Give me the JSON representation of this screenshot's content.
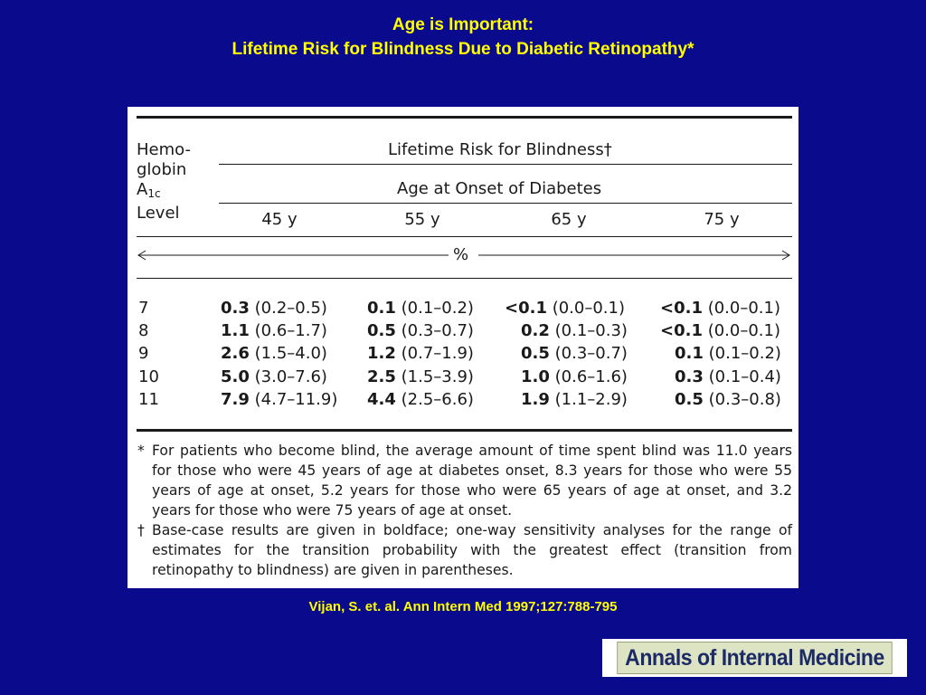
{
  "slide": {
    "title_line1": "Age is Important:",
    "title_line2": "Lifetime Risk for Blindness Due to Diabetic Retinopathy*",
    "citation": "Vijan, S. et. al. Ann Intern Med 1997;127:788-795",
    "logo_text": "Annals of Internal Medicine"
  },
  "table": {
    "stub_head_line1": "Hemo-",
    "stub_head_line2": "globin",
    "stub_head_line3": "A",
    "stub_head_sub": "1c",
    "stub_head_line4": "Level",
    "spanner1": "Lifetime Risk for Blindness†",
    "spanner2": "Age at Onset of Diabetes",
    "ages": [
      "45 y",
      "55 y",
      "65 y",
      "75 y"
    ],
    "unit": "%",
    "rows": [
      {
        "level": "7",
        "cells": [
          {
            "v": "0.3",
            "ci": "(0.2–0.5)"
          },
          {
            "v": "0.1",
            "ci": "(0.1–0.2)"
          },
          {
            "v": "<0.1",
            "ci": "(0.0–0.1)"
          },
          {
            "v": "<0.1",
            "ci": "(0.0–0.1)"
          }
        ]
      },
      {
        "level": "8",
        "cells": [
          {
            "v": "1.1",
            "ci": "(0.6–1.7)"
          },
          {
            "v": "0.5",
            "ci": "(0.3–0.7)"
          },
          {
            "v": "0.2",
            "ci": "(0.1–0.3)"
          },
          {
            "v": "<0.1",
            "ci": "(0.0–0.1)"
          }
        ]
      },
      {
        "level": "9",
        "cells": [
          {
            "v": "2.6",
            "ci": "(1.5–4.0)"
          },
          {
            "v": "1.2",
            "ci": "(0.7–1.9)"
          },
          {
            "v": "0.5",
            "ci": "(0.3–0.7)"
          },
          {
            "v": "0.1",
            "ci": "(0.1–0.2)"
          }
        ]
      },
      {
        "level": "10",
        "cells": [
          {
            "v": "5.0",
            "ci": "(3.0–7.6)"
          },
          {
            "v": "2.5",
            "ci": "(1.5–3.9)"
          },
          {
            "v": "1.0",
            "ci": "(0.6–1.6)"
          },
          {
            "v": "0.3",
            "ci": "(0.1–0.4)"
          }
        ]
      },
      {
        "level": "11",
        "cells": [
          {
            "v": "7.9",
            "ci": "(4.7–11.9)"
          },
          {
            "v": "4.4",
            "ci": "(2.5–6.6)"
          },
          {
            "v": "1.9",
            "ci": "(1.1–2.9)"
          },
          {
            "v": "0.5",
            "ci": "(0.3–0.8)"
          }
        ]
      }
    ],
    "footnote1_mark": "*",
    "footnote1": "For patients who become blind, the average amount of time spent blind was 11.0 years for those who were 45 years of age at diabetes onset, 8.3 years for those who were 55 years of age at onset, 5.2 years for those who were 65 years of age at onset, and 3.2 years for those who were 75 years of age at onset.",
    "footnote2_mark": "†",
    "footnote2": "Base-case results are given in boldface; one-way sensitivity analyses for the range of estimates for the transition probability with the greatest effect (transition from retinopathy to blindness) are given in parentheses."
  }
}
